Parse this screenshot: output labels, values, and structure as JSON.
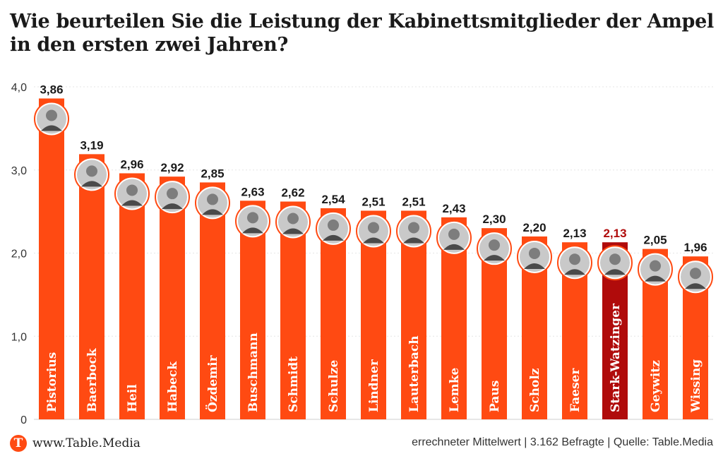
{
  "chart_data": {
    "type": "bar",
    "title": "Wie beurteilen Sie die Leistung der Kabinettsmitglieder der Ampel in den ersten zwei Jahren?",
    "categories": [
      "Pistorius",
      "Baerbock",
      "Heil",
      "Habeck",
      "Özdemir",
      "Buschmann",
      "Schmidt",
      "Schulze",
      "Lindner",
      "Lauterbach",
      "Lemke",
      "Paus",
      "Scholz",
      "Faeser",
      "Stark-Watzinger",
      "Geywitz",
      "Wissing"
    ],
    "values": [
      3.86,
      3.19,
      2.96,
      2.92,
      2.85,
      2.63,
      2.62,
      2.54,
      2.51,
      2.51,
      2.43,
      2.3,
      2.2,
      2.13,
      2.13,
      2.05,
      1.96
    ],
    "value_labels": [
      "3,86",
      "3,19",
      "2,96",
      "2,92",
      "2,85",
      "2,63",
      "2,62",
      "2,54",
      "2,51",
      "2,51",
      "2,43",
      "2,30",
      "2,20",
      "2,13",
      "2,13",
      "2,05",
      "1,96"
    ],
    "highlight_index": 14,
    "ylim": [
      0,
      4.0
    ],
    "yticks": [
      0,
      1.0,
      2.0,
      3.0,
      4.0
    ],
    "ytick_labels": [
      "0",
      "1,0",
      "2,0",
      "3,0",
      "4,0"
    ],
    "grid": true,
    "colors": {
      "bar": "#ff4a12",
      "highlight": "#b00b0b",
      "label": "#1a1a1a",
      "highlight_label": "#b00b0b",
      "grid": "#e6e6e6",
      "avatar_bg": "#7d7d7d",
      "avatar_ring": "#ff4a12"
    }
  },
  "footer": {
    "logo_letter": "T",
    "brand": "www.Table.Media",
    "source": "errechneter Mittelwert | 3.162 Befragte | Quelle: Table.Media"
  }
}
